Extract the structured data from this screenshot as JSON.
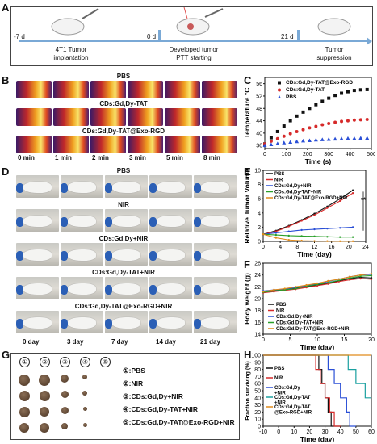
{
  "panels": {
    "A": "A",
    "B": "B",
    "C": "C",
    "D": "D",
    "E": "E",
    "F": "F",
    "G": "G",
    "H": "H"
  },
  "panelA": {
    "timeline": [
      {
        "day": "-7 d",
        "label_line1": "4T1 Tumor",
        "label_line2": "implantation"
      },
      {
        "day": "0 d",
        "label_line1": "Developed tumor",
        "label_line2": "PTT starting"
      },
      {
        "day": "21 d",
        "label_line1": "Tumor",
        "label_line2": "suppression"
      }
    ]
  },
  "panelB": {
    "groups": [
      "PBS",
      "CDs:Gd,Dy-TAT",
      "CDs:Gd,Dy-TAT@Exo-RGD"
    ],
    "times": [
      "0 min",
      "1 min",
      "2 min",
      "3 min",
      "5 min",
      "8 min"
    ]
  },
  "panelD": {
    "groups": [
      "PBS",
      "NIR",
      "CDs:Gd,Dy+NIR",
      "CDs:Gd,Dy-TAT+NIR",
      "CDs:Gd,Dy-TAT@Exo-RGD+NIR"
    ],
    "days": [
      "0 day",
      "3 day",
      "7 day",
      "14 day",
      "21 day"
    ]
  },
  "panelG": {
    "numbers": [
      "①",
      "②",
      "③",
      "④",
      "⑤"
    ],
    "legend": [
      "①:PBS",
      "②:NIR",
      "③:CDs:Gd,Dy+NIR",
      "④:CDs:Gd,Dy-TAT+NIR",
      "⑤:CDs:Gd,Dy-TAT@Exo-RGD+NIR"
    ]
  },
  "colors": {
    "black": "#111111",
    "red": "#d62a2a",
    "blue": "#2a4fd6",
    "green": "#2aa02a",
    "orange": "#e08a1a",
    "teal": "#1aa0a0"
  },
  "chart_data": [
    {
      "panel": "C",
      "type": "scatter",
      "xlabel": "Time (s)",
      "ylabel": "Temperature °C",
      "xlim": [
        0,
        500
      ],
      "ylim": [
        35,
        58
      ],
      "xticks": [
        0,
        100,
        200,
        300,
        400,
        500
      ],
      "yticks": [
        36,
        40,
        44,
        48,
        52,
        56
      ],
      "legend_position": "top-left",
      "x": [
        0,
        30,
        60,
        90,
        120,
        150,
        180,
        210,
        240,
        270,
        300,
        330,
        360,
        390,
        420,
        450,
        480
      ],
      "series": [
        {
          "name": "CDs:Gd,Dy-TAT@Exo-RGD",
          "color": "#111111",
          "marker": "square",
          "values": [
            36.5,
            38.5,
            40.5,
            42.3,
            44.0,
            45.5,
            46.8,
            48.0,
            49.2,
            50.3,
            51.3,
            52.2,
            52.9,
            53.4,
            53.8,
            54.0,
            54.1
          ]
        },
        {
          "name": "CDs:Gd,Dy-TAT",
          "color": "#d62a2a",
          "marker": "circle",
          "values": [
            36.5,
            37.4,
            38.2,
            39.0,
            39.8,
            40.5,
            41.1,
            41.7,
            42.2,
            42.7,
            43.1,
            43.5,
            43.8,
            44.0,
            44.2,
            44.3,
            44.4
          ]
        },
        {
          "name": "PBS",
          "color": "#2a4fd6",
          "marker": "triangle",
          "values": [
            36.0,
            36.3,
            36.6,
            36.9,
            37.1,
            37.3,
            37.5,
            37.6,
            37.8,
            37.9,
            38.0,
            38.1,
            38.2,
            38.3,
            38.3,
            38.4,
            38.4
          ]
        }
      ]
    },
    {
      "panel": "E",
      "type": "line",
      "xlabel": "Time (day)",
      "ylabel": "Relative Tumor Volume",
      "xlim": [
        0,
        24
      ],
      "ylim": [
        0,
        10
      ],
      "xticks": [
        0,
        4,
        8,
        12,
        16,
        20,
        24
      ],
      "yticks": [
        0,
        2,
        4,
        6,
        8,
        10
      ],
      "legend_position": "top-left",
      "annotation": "**",
      "x": [
        0,
        3,
        6,
        9,
        12,
        15,
        18,
        21
      ],
      "series": [
        {
          "name": "PBS",
          "color": "#111111",
          "values": [
            1,
            1.5,
            2.2,
            3.0,
            3.9,
            4.9,
            6.0,
            7.2
          ]
        },
        {
          "name": "NIR",
          "color": "#d62a2a",
          "values": [
            1,
            1.4,
            2.1,
            2.9,
            3.7,
            4.7,
            5.7,
            6.8
          ]
        },
        {
          "name": "CDs:Gd,Dy+NIR",
          "color": "#2a4fd6",
          "values": [
            1,
            1.2,
            1.4,
            1.6,
            1.7,
            1.8,
            1.9,
            2.0
          ]
        },
        {
          "name": "CDs:Gd,Dy-TAT+NIR",
          "color": "#2aa02a",
          "values": [
            1,
            0.9,
            0.8,
            0.75,
            0.7,
            0.65,
            0.6,
            0.6
          ]
        },
        {
          "name": "CDs:Gd,Dy-TAT@Exo-RGD+NIR",
          "color": "#e08a1a",
          "values": [
            1,
            0.5,
            0.2,
            0.1,
            0.05,
            0.03,
            0.02,
            0.02
          ]
        }
      ]
    },
    {
      "panel": "F",
      "type": "line",
      "xlabel": "Time (day)",
      "ylabel": "Body weight (g)",
      "xlim": [
        0,
        20
      ],
      "ylim": [
        14,
        26
      ],
      "xticks": [
        0,
        5,
        10,
        15,
        20
      ],
      "yticks": [
        14,
        16,
        18,
        20,
        22,
        24,
        26
      ],
      "legend_position": "bottom-left",
      "x": [
        0,
        2,
        4,
        6,
        8,
        10,
        12,
        14,
        16,
        18,
        20
      ],
      "series": [
        {
          "name": "PBS",
          "color": "#111111",
          "values": [
            21.2,
            21.4,
            21.5,
            21.8,
            22.0,
            22.3,
            22.6,
            23.0,
            23.4,
            23.6,
            23.5
          ]
        },
        {
          "name": "NIR",
          "color": "#d62a2a",
          "values": [
            21.0,
            21.2,
            21.4,
            21.6,
            21.9,
            22.2,
            22.5,
            22.9,
            23.2,
            23.4,
            23.3
          ]
        },
        {
          "name": "CDs:Gd,Dy+NIR",
          "color": "#2a4fd6",
          "values": [
            21.3,
            21.5,
            21.6,
            21.9,
            22.2,
            22.5,
            22.9,
            23.3,
            23.7,
            24.0,
            24.1
          ]
        },
        {
          "name": "CDs:Gd,Dy-TAT+NIR",
          "color": "#2aa02a",
          "values": [
            21.1,
            21.3,
            21.5,
            21.7,
            22.1,
            22.4,
            22.7,
            23.1,
            23.5,
            23.8,
            23.9
          ]
        },
        {
          "name": "CDs:Gd,Dy-TAT@Exo-RGD+NIR",
          "color": "#e08a1a",
          "values": [
            21.2,
            21.5,
            21.7,
            22.0,
            22.3,
            22.6,
            23.0,
            23.3,
            23.7,
            24.0,
            24.2
          ]
        }
      ]
    },
    {
      "panel": "H",
      "type": "line",
      "xlabel": "Time (day)",
      "ylabel": "Fraction surviving (%)",
      "xlim": [
        -10,
        60
      ],
      "ylim": [
        0,
        100
      ],
      "xticks": [
        -10,
        0,
        10,
        20,
        30,
        40,
        50,
        60
      ],
      "yticks": [
        0,
        10,
        20,
        30,
        40,
        50,
        60,
        70,
        80,
        90,
        100
      ],
      "legend_position": "bottom-left",
      "series": [
        {
          "name": "PBS",
          "color": "#111111",
          "step": [
            [
              -10,
              100
            ],
            [
              26,
              100
            ],
            [
              26,
              80
            ],
            [
              28,
              80
            ],
            [
              28,
              60
            ],
            [
              30,
              60
            ],
            [
              30,
              40
            ],
            [
              32,
              40
            ],
            [
              32,
              20
            ],
            [
              34,
              20
            ],
            [
              34,
              0
            ],
            [
              40,
              0
            ]
          ]
        },
        {
          "name": "NIR",
          "color": "#d62a2a",
          "step": [
            [
              -10,
              100
            ],
            [
              24,
              100
            ],
            [
              24,
              80
            ],
            [
              27,
              80
            ],
            [
              27,
              60
            ],
            [
              30,
              60
            ],
            [
              30,
              40
            ],
            [
              33,
              40
            ],
            [
              33,
              20
            ],
            [
              36,
              20
            ],
            [
              36,
              0
            ],
            [
              40,
              0
            ]
          ]
        },
        {
          "name": "CDs:Gd,Dy +NIR",
          "color": "#2a4fd6",
          "step": [
            [
              -10,
              100
            ],
            [
              32,
              100
            ],
            [
              32,
              80
            ],
            [
              36,
              80
            ],
            [
              36,
              60
            ],
            [
              40,
              60
            ],
            [
              40,
              40
            ],
            [
              44,
              40
            ],
            [
              44,
              20
            ],
            [
              46,
              20
            ],
            [
              46,
              0
            ],
            [
              50,
              0
            ]
          ]
        },
        {
          "name": "CDs:Gd,Dy-TAT +NIR",
          "color": "#1aa0a0",
          "step": [
            [
              -10,
              100
            ],
            [
              45,
              100
            ],
            [
              45,
              80
            ],
            [
              50,
              80
            ],
            [
              50,
              60
            ],
            [
              56,
              60
            ],
            [
              56,
              40
            ],
            [
              62,
              40
            ]
          ]
        },
        {
          "name": "CDs:Gd,Dy-TAT @Exo-RGD+NIR",
          "color": "#e08a1a",
          "step": [
            [
              -10,
              100
            ],
            [
              62,
              100
            ]
          ]
        }
      ]
    }
  ]
}
